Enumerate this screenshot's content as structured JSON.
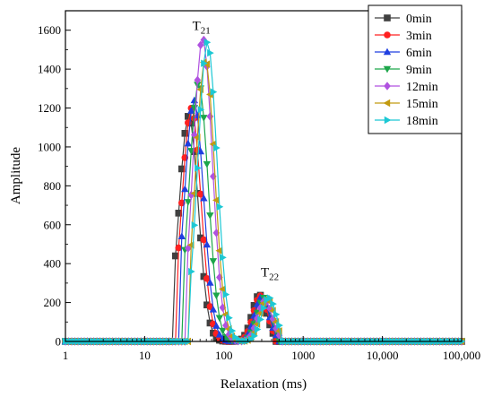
{
  "chart_data": {
    "type": "line",
    "xlabel": "Relaxation (ms)",
    "ylabel": "Amplitude",
    "x_scale": "log",
    "xlim": [
      1,
      100000
    ],
    "ylim": [
      0,
      1700
    ],
    "x_ticks": [
      1,
      10,
      100,
      1000,
      10000,
      100000
    ],
    "x_tick_labels": [
      "1",
      "10",
      "100",
      "1000",
      "10,000",
      "100,000"
    ],
    "y_ticks": [
      0,
      200,
      400,
      600,
      800,
      1000,
      1200,
      1400,
      1600
    ],
    "y_tick_labels": [
      "0",
      "200",
      "400",
      "600",
      "800",
      "1000",
      "1200",
      "1400",
      "1600"
    ],
    "grid": false,
    "legend_position": "top-right",
    "annotations": [
      {
        "base": "T",
        "sub": "21",
        "x": 52,
        "y": 1600
      },
      {
        "base": "T",
        "sub": "22",
        "x": 380,
        "y": 335
      }
    ],
    "series": [
      {
        "name": "0min",
        "color": "#404040",
        "marker": "square",
        "t21": 36,
        "a21": 1160,
        "t22": 280,
        "a22": 240,
        "onset": 24,
        "end": 420
      },
      {
        "name": "3min",
        "color": "#ff2020",
        "marker": "circle",
        "t21": 39,
        "a21": 1200,
        "t22": 290,
        "a22": 235,
        "onset": 26,
        "end": 440
      },
      {
        "name": "6min",
        "color": "#1f3fe0",
        "marker": "triangle-up",
        "t21": 42,
        "a21": 1240,
        "t22": 300,
        "a22": 230,
        "onset": 28,
        "end": 460
      },
      {
        "name": "9min",
        "color": "#1ca64a",
        "marker": "triangle-down",
        "t21": 48,
        "a21": 1330,
        "t22": 320,
        "a22": 225,
        "onset": 31,
        "end": 480
      },
      {
        "name": "12min",
        "color": "#b052e0",
        "marker": "diamond",
        "t21": 54,
        "a21": 1560,
        "t22": 330,
        "a22": 210,
        "onset": 34,
        "end": 500
      },
      {
        "name": "15min",
        "color": "#c29a10",
        "marker": "triangle-left",
        "t21": 58,
        "a21": 1450,
        "t22": 350,
        "a22": 220,
        "onset": 36,
        "end": 520
      },
      {
        "name": "18min",
        "color": "#1cc8d4",
        "marker": "triangle-right",
        "t21": 62,
        "a21": 1540,
        "t22": 370,
        "a22": 225,
        "onset": 38,
        "end": 540
      }
    ]
  }
}
